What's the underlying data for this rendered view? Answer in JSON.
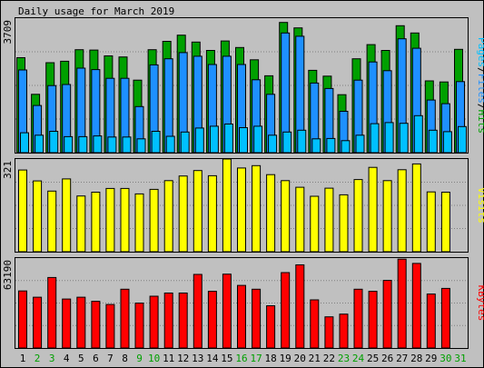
{
  "chart_data": {
    "type": "bar",
    "title": "Daily usage for March 2019",
    "days": [
      "1",
      "2",
      "3",
      "4",
      "5",
      "6",
      "7",
      "8",
      "9",
      "10",
      "11",
      "12",
      "13",
      "14",
      "15",
      "16",
      "17",
      "18",
      "19",
      "20",
      "21",
      "22",
      "23",
      "24",
      "25",
      "26",
      "27",
      "28",
      "29",
      "30",
      "31"
    ],
    "weekend_days": [
      "2",
      "3",
      "9",
      "10",
      "16",
      "17",
      "23",
      "24",
      "30",
      "31"
    ],
    "panels": [
      {
        "id": "hits",
        "ymax": 3709,
        "ymax_label": "3709",
        "side_label": [
          "Pages",
          "/",
          "Files",
          "/",
          "Hits"
        ],
        "series": [
          {
            "name": "Hits",
            "color": "#00a000",
            "values": [
              2620,
              1610,
              2480,
              2520,
              2840,
              2830,
              2670,
              2640,
              2000,
              2840,
              3070,
              3240,
              3050,
              2820,
              3080,
              2900,
              2560,
              2120,
              3590,
              3440,
              2270,
              2110,
              1600,
              2590,
              2980,
              2820,
              3500,
              3300,
              1980,
              1950,
              2850
            ]
          },
          {
            "name": "Files",
            "color": "#1e90ff",
            "values": [
              2280,
              1300,
              1850,
              1880,
              2330,
              2290,
              2050,
              2050,
              1270,
              2420,
              2590,
              2760,
              2660,
              2430,
              2660,
              2430,
              2010,
              1610,
              3300,
              3210,
              1920,
              1770,
              1140,
              2000,
              2500,
              2260,
              3140,
              2880,
              1450,
              1350,
              1960
            ]
          },
          {
            "name": "Pages",
            "color": "#00c0ff",
            "values": [
              550,
              480,
              590,
              440,
              440,
              460,
              430,
              430,
              380,
              590,
              450,
              570,
              680,
              730,
              790,
              690,
              730,
              480,
              570,
              620,
              380,
              390,
              330,
              480,
              800,
              830,
              810,
              1020,
              620,
              580,
              720
            ]
          }
        ]
      },
      {
        "id": "visits",
        "ymax": 321,
        "ymax_label": "321",
        "side_label": [
          "Visits"
        ],
        "series": [
          {
            "name": "Visits",
            "color": "#ffff00",
            "values": [
              283,
              245,
              210,
              252,
              193,
              206,
              219,
              219,
              200,
              216,
              246,
              262,
              281,
              263,
              321,
              290,
              298,
              267,
              246,
              223,
              192,
              220,
              197,
              250,
              292,
              246,
              284,
              304,
              207,
              206,
              0
            ]
          }
        ]
      },
      {
        "id": "kbytes",
        "ymax": 63190,
        "ymax_label": "63190",
        "side_label": [
          "KBytes"
        ],
        "series": [
          {
            "name": "KBytes",
            "color": "#ff0000",
            "values": [
              40100,
              35700,
              49500,
              34400,
              35700,
              32800,
              30600,
              41300,
              31500,
              36400,
              38600,
              38600,
              51700,
              39800,
              51900,
              44000,
              41300,
              29700,
              53000,
              58400,
              33800,
              21900,
              23800,
              41300,
              39800,
              47500,
              62400,
              59400,
              37900,
              41900,
              0
            ]
          }
        ]
      }
    ]
  }
}
